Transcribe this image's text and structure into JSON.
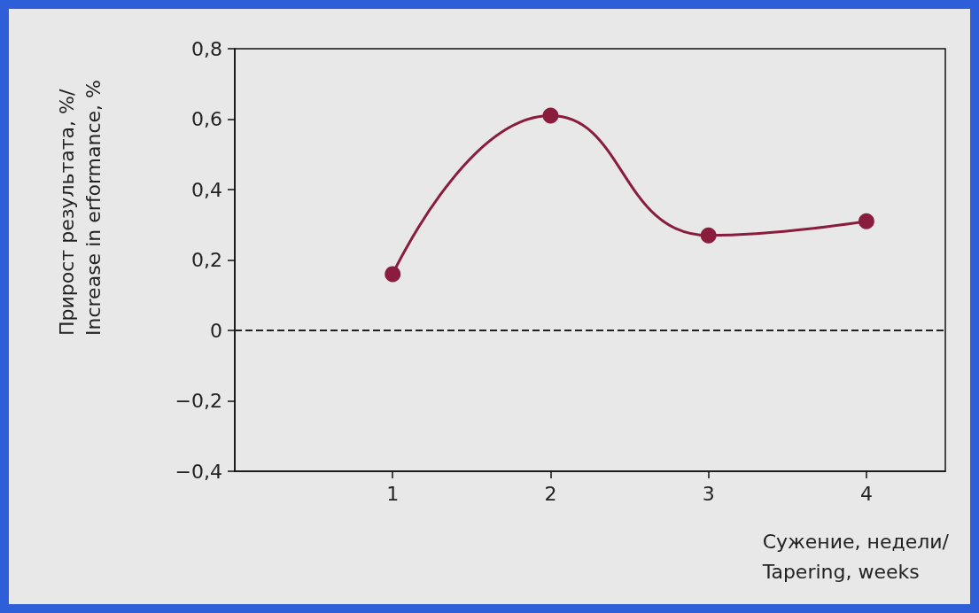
{
  "chart_data": {
    "type": "line",
    "xlabel": "Сужение, недели/\nTapering, weeks",
    "ylabel": "Прирост результата, %/\nIncrease in erformance, %",
    "x": [
      1,
      2,
      3,
      4
    ],
    "series": [
      {
        "color": "#8a1c3e",
        "values": [
          0.16,
          0.61,
          0.27,
          0.31
        ]
      }
    ],
    "xlim": [
      0,
      4.5
    ],
    "xticks": [
      1,
      2,
      3,
      4
    ],
    "ylim": [
      -0.4,
      0.8
    ],
    "yticks": [
      {
        "value": -0.4,
        "label": "−0,4"
      },
      {
        "value": -0.2,
        "label": "−0,2"
      },
      {
        "value": 0,
        "label": "0"
      },
      {
        "value": 0.2,
        "label": "0,2"
      },
      {
        "value": 0.4,
        "label": "0,4"
      },
      {
        "value": 0.6,
        "label": "0,6"
      },
      {
        "value": 0.8,
        "label": "0,8"
      }
    ],
    "ref_lines": [
      {
        "axis": "y",
        "value": 0,
        "line_style": "dashed",
        "color": "#222222"
      }
    ],
    "grid": false,
    "marker": "circle"
  }
}
